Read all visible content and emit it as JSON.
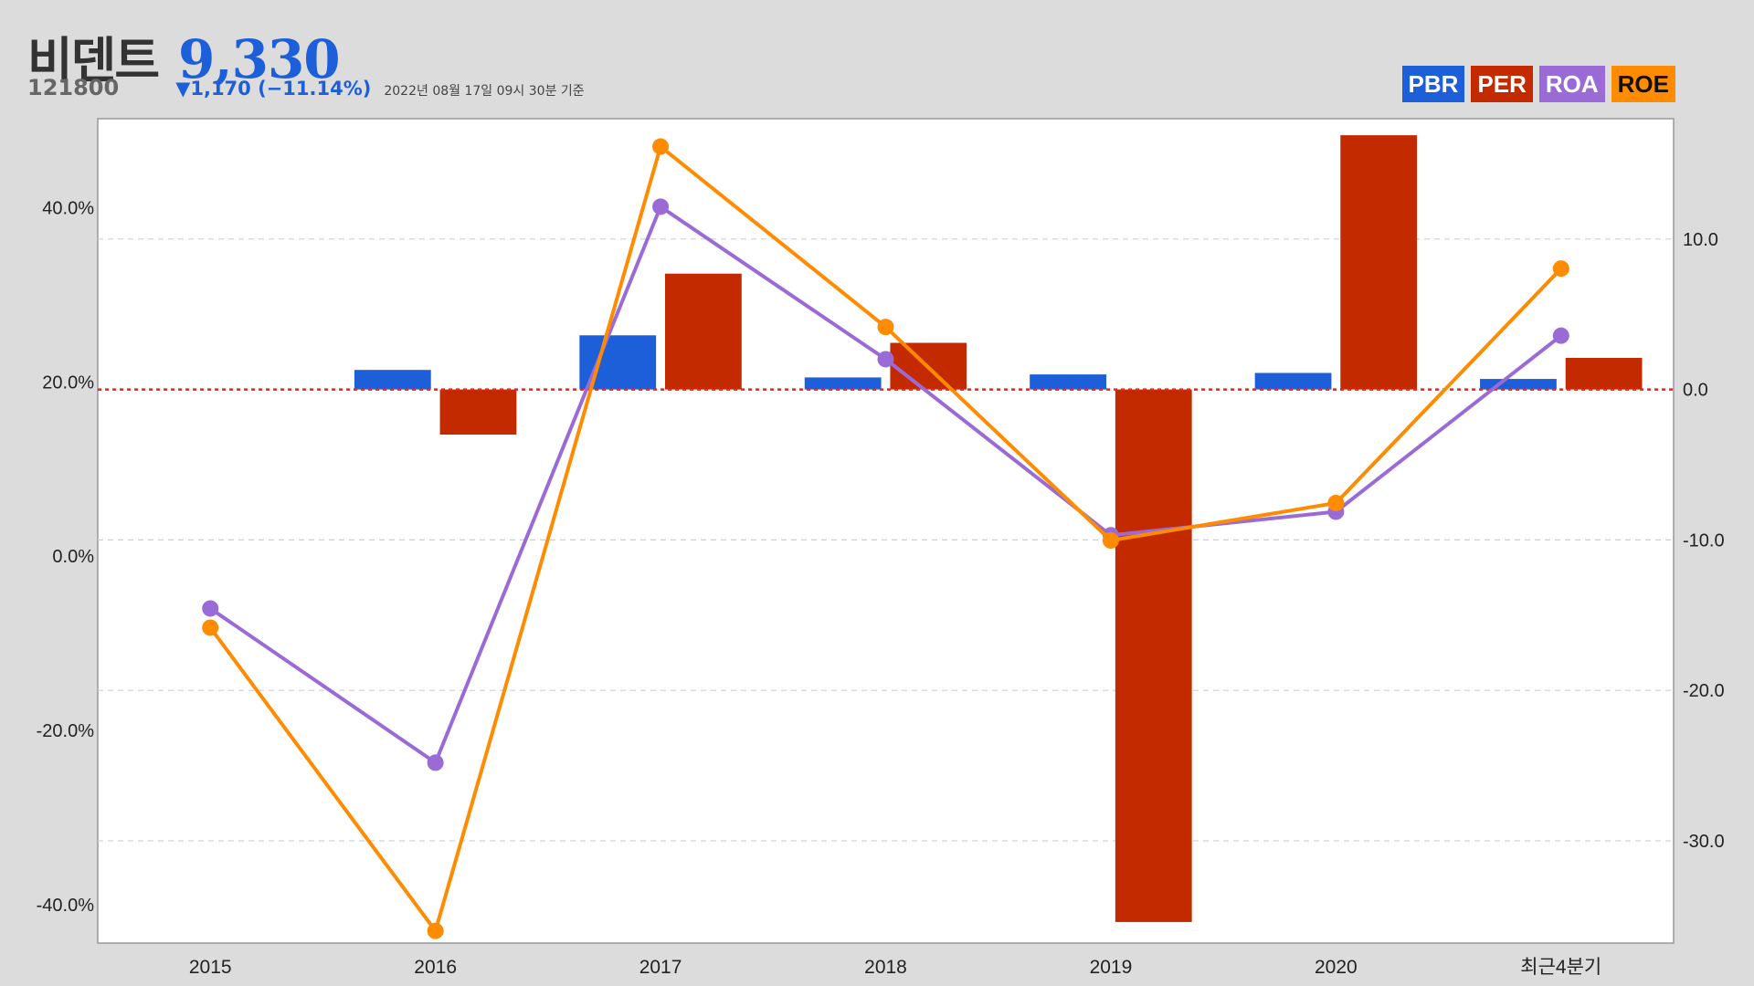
{
  "header": {
    "name": "비덴트",
    "price": "9,330",
    "code": "121800",
    "change": "▼1,170 (−11.14%)",
    "timestamp": "2022년 08월 17일 09시 30분 기준"
  },
  "legend": [
    {
      "label": "PBR",
      "color": "#1c5fd8"
    },
    {
      "label": "PER",
      "color": "#c42a00"
    },
    {
      "label": "ROA",
      "color": "#9a6bd6"
    },
    {
      "label": "ROE",
      "color": "#ff8c00"
    }
  ],
  "chart_data": {
    "type": "bar",
    "categories": [
      "2015",
      "2016",
      "2017",
      "2018",
      "2019",
      "2020",
      "최근4분기"
    ],
    "left_axis": {
      "ticks": [
        40,
        20,
        0,
        -20,
        -40
      ],
      "tick_labels": [
        "40.0%",
        "20.0%",
        "0.0%",
        "-20.0%",
        "-40.0%"
      ],
      "range": [
        -44.4,
        50.2
      ]
    },
    "right_axis": {
      "ticks": [
        10,
        0,
        -10,
        -20,
        -30
      ],
      "tick_labels": [
        "10.0",
        "0.0",
        "-10.0",
        "-20.0",
        "-30.0"
      ],
      "range": [
        -36.8,
        18.0
      ]
    },
    "zero_line_right": 0,
    "grid": true,
    "bar_series": [
      {
        "name": "PBR",
        "color": "#1c5fd8",
        "axis": "right",
        "values": [
          null,
          1.3,
          3.6,
          0.8,
          1.0,
          1.1,
          0.7
        ]
      },
      {
        "name": "PER",
        "color": "#c42a00",
        "axis": "right",
        "values": [
          null,
          -3.0,
          7.7,
          3.1,
          -35.4,
          16.9,
          2.1
        ]
      }
    ],
    "line_series": [
      {
        "name": "ROA",
        "color": "#9a6bd6",
        "axis": "left",
        "values": [
          -6.0,
          -23.7,
          40.1,
          22.6,
          2.4,
          5.1,
          25.3
        ]
      },
      {
        "name": "ROE",
        "color": "#ff8c00",
        "axis": "left",
        "values": [
          -8.2,
          -43.0,
          47.0,
          26.3,
          1.8,
          6.1,
          33.0
        ]
      }
    ]
  }
}
